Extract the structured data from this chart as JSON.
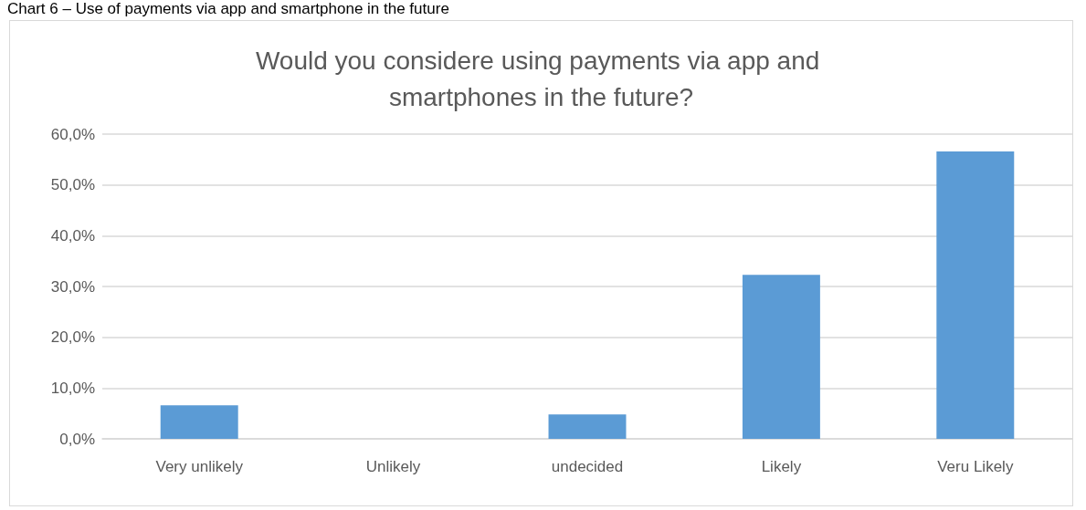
{
  "chart_data": {
    "type": "bar",
    "title": "Would you considere using payments via app and smartphones in the future?",
    "annotations": [
      "Chart 6 – Use of payments via app and smartphone in the future"
    ],
    "categories": [
      "Very unlikely",
      "Unlikely",
      "undecided",
      "Likely",
      "Veru Likely"
    ],
    "values": [
      6.6,
      0,
      4.8,
      32.3,
      56.6
    ],
    "color": "#5b9bd5",
    "ylim": [
      0,
      60
    ],
    "yticks": [
      {
        "value": 0,
        "label": "0,0%"
      },
      {
        "value": 10,
        "label": "10,0%"
      },
      {
        "value": 20,
        "label": "20,0%"
      },
      {
        "value": 30,
        "label": "30,0%"
      },
      {
        "value": 40,
        "label": "40,0%"
      },
      {
        "value": 50,
        "label": "50,0%"
      },
      {
        "value": 60,
        "label": "60,0%"
      }
    ],
    "grid": true
  }
}
